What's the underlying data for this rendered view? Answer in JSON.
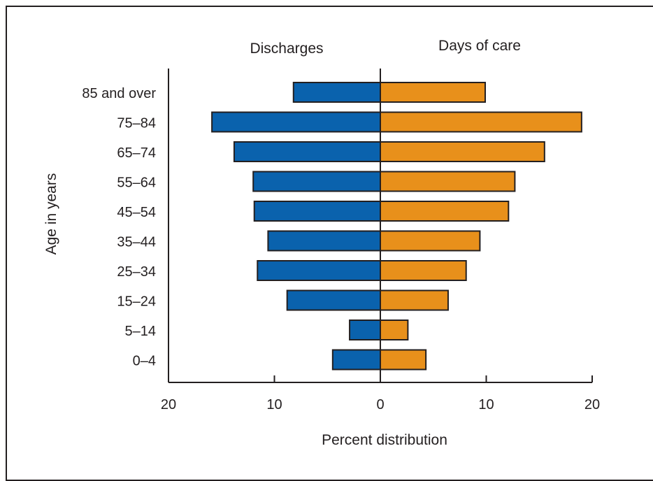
{
  "chart_data": {
    "type": "bar",
    "orientation": "horizontal-back-to-back",
    "categories": [
      "85 and over",
      "75–84",
      "65–74",
      "55–64",
      "45–54",
      "35–44",
      "25–34",
      "15–24",
      "5–14",
      "0–4"
    ],
    "series": [
      {
        "name": "Discharges",
        "values": [
          8.2,
          15.9,
          13.8,
          12.0,
          11.9,
          10.6,
          11.6,
          8.8,
          2.9,
          4.5
        ],
        "color": "#0a62ad",
        "side": "left"
      },
      {
        "name": "Days of care",
        "values": [
          9.9,
          19.0,
          15.5,
          12.7,
          12.1,
          9.4,
          8.1,
          6.4,
          2.6,
          4.3
        ],
        "color": "#e8901b",
        "side": "right"
      }
    ],
    "xlabel": "Percent distribution",
    "ylabel": "Age in years",
    "xlim": [
      0,
      20
    ],
    "x_ticks": [
      "20",
      "10",
      "0",
      "10",
      "20"
    ],
    "grid": false
  }
}
